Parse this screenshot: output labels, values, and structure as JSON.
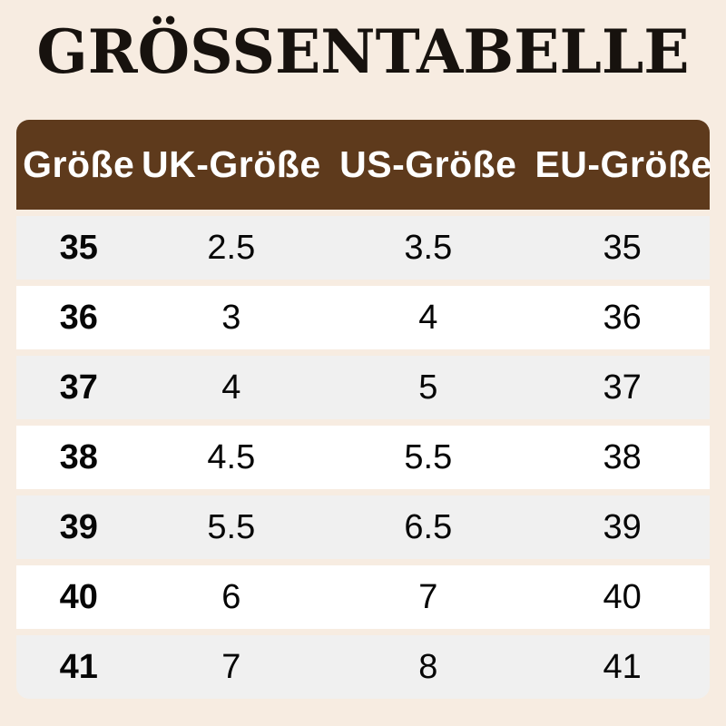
{
  "title": "GRÖSSENTABELLE",
  "colors": {
    "page_bg": "#f7ece1",
    "header_bg": "#5e3a1c",
    "header_text": "#ffffff",
    "row_odd": "#ffffff",
    "row_even": "#f0f0f0",
    "title_color": "#17120e",
    "cell_text": "#060606"
  },
  "chart_data": {
    "type": "table",
    "title": "GRÖSSENTABELLE",
    "columns": [
      "Größe",
      "UK-Größe",
      "US-Größe",
      "EU-Größe"
    ],
    "rows": [
      [
        "35",
        "2.5",
        "3.5",
        "35"
      ],
      [
        "36",
        "3",
        "4",
        "36"
      ],
      [
        "37",
        "4",
        "5",
        "37"
      ],
      [
        "38",
        "4.5",
        "5.5",
        "38"
      ],
      [
        "39",
        "5.5",
        "6.5",
        "39"
      ],
      [
        "40",
        "6",
        "7",
        "40"
      ],
      [
        "41",
        "7",
        "8",
        "41"
      ]
    ],
    "layout": {
      "header_style": "brown bar, rounded top corners, white bold text",
      "row_striping": "white / light-gray alternating with cream gaps",
      "alignment": "all columns centered, first column bold"
    }
  }
}
